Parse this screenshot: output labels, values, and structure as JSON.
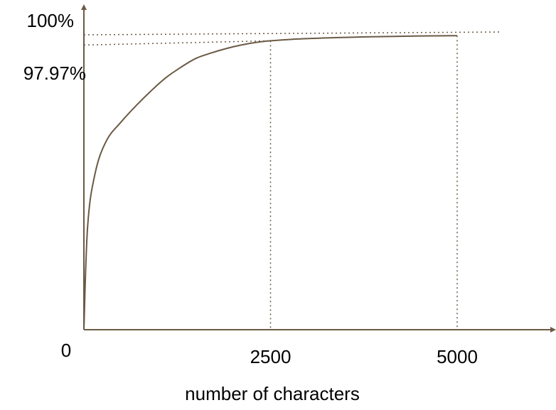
{
  "chart_data": {
    "type": "line",
    "title": "",
    "xlabel": "number of characters",
    "ylabel": "",
    "xlim": [
      0,
      6500
    ],
    "ylim": [
      0,
      100
    ],
    "grid": false,
    "x_ticks": [
      {
        "value": 0,
        "label": "0"
      },
      {
        "value": 2500,
        "label": "2500"
      },
      {
        "value": 5000,
        "label": "5000"
      }
    ],
    "y_ticks": [
      {
        "value": 100,
        "label": "100%"
      },
      {
        "value": 97.97,
        "label": "97.97%"
      }
    ],
    "reference_lines": {
      "horizontal": [
        100,
        97.97
      ],
      "vertical": [
        2500,
        5000
      ]
    },
    "series": [
      {
        "x": [
          0,
          50,
          150,
          300,
          500,
          700,
          900,
          1100,
          1300,
          1500,
          1700,
          1900,
          2100,
          2300,
          2500,
          2800,
          3200,
          3600,
          4000,
          4500,
          5000
        ],
        "y": [
          0,
          35,
          53,
          64,
          70.5,
          76,
          81,
          85.5,
          89,
          92,
          93.8,
          95.3,
          96.5,
          97.4,
          97.97,
          98.5,
          98.9,
          99.2,
          99.4,
          99.6,
          99.7
        ]
      }
    ],
    "colors": {
      "axis": "#6b5a45",
      "line": "#6b5a45",
      "reference": "#6b5a45"
    }
  }
}
